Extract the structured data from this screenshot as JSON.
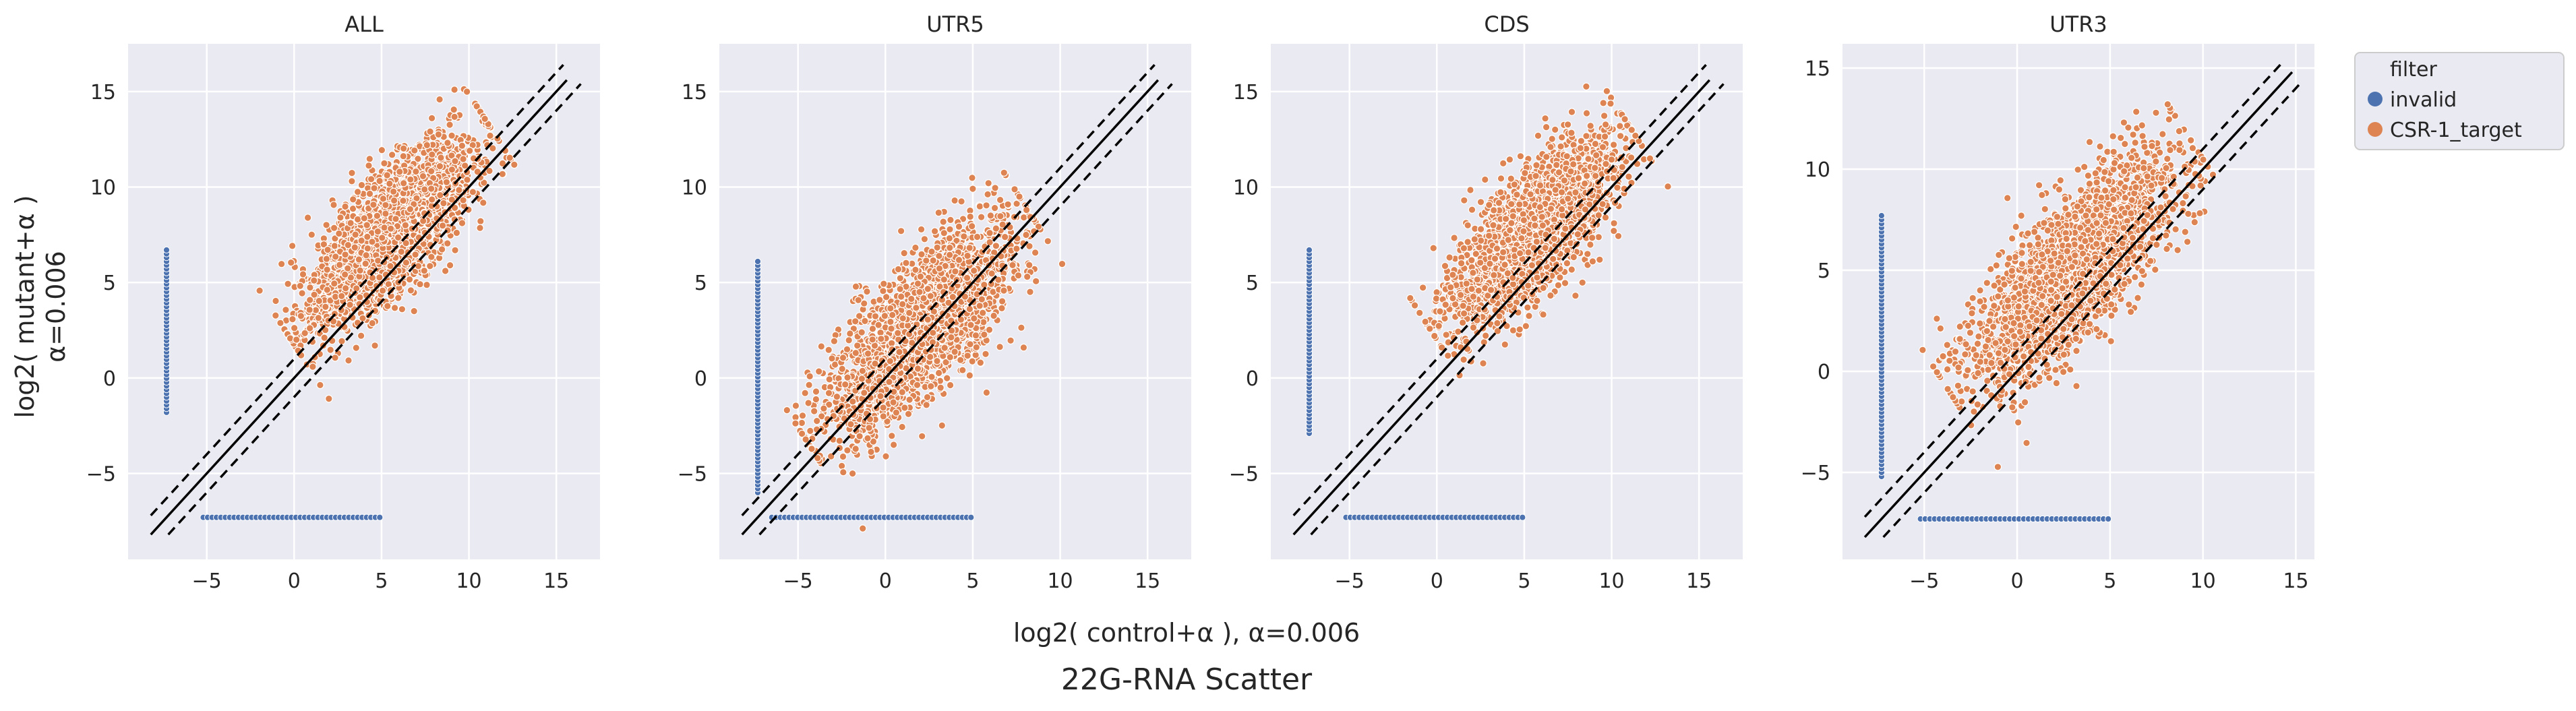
{
  "figure": {
    "suptitle": "22G-RNA Scatter",
    "shared_xlabel": "log2( control+α ), α=0.006",
    "shared_ylabel_line1": "log2( mutant+α )",
    "shared_ylabel_line2": "α=0.006"
  },
  "legend": {
    "title": "filter",
    "items": [
      {
        "label": "invalid",
        "color": "#4c72b0"
      },
      {
        "label": "CSR-1_target",
        "color": "#dd8452"
      }
    ]
  },
  "colors": {
    "invalid": "#4c72b0",
    "target": "#dd8452",
    "panel_bg": "#eaeaf2",
    "grid": "#ffffff",
    "reference_lines": "#000000"
  },
  "chart_data": [
    {
      "type": "scatter",
      "title": "ALL",
      "xlim": [
        -9.5,
        17.5
      ],
      "ylim": [
        -9.5,
        17.5
      ],
      "xticks": [
        -5,
        0,
        5,
        10,
        15
      ],
      "yticks": [
        -5,
        0,
        5,
        10,
        15
      ],
      "grid": true,
      "reference_lines": [
        {
          "style": "solid",
          "intercept": 0,
          "x_range": [
            -8.2,
            15.6
          ]
        },
        {
          "style": "dashed",
          "intercept": 1,
          "x_range": [
            -8.2,
            15.4
          ]
        },
        {
          "style": "dashed",
          "intercept": -1,
          "x_range": [
            -7.2,
            16.4
          ]
        }
      ],
      "series": [
        {
          "name": "invalid",
          "x_fixed": -7.3,
          "y_fixed": -7.3,
          "vertical_range": [
            -1.8,
            6.7
          ],
          "horizontal_range": [
            -5.2,
            4.9
          ]
        },
        {
          "name": "CSR-1_target",
          "cloud_center": [
            5.5,
            7.6
          ],
          "cloud_extent": [
            -1.8,
            15.0
          ],
          "spread_perp": 1.4,
          "diagonal_offset": 2.0
        }
      ]
    },
    {
      "type": "scatter",
      "title": "UTR5",
      "xlim": [
        -9.5,
        17.5
      ],
      "ylim": [
        -9.5,
        17.5
      ],
      "xticks": [
        -5,
        0,
        5,
        10,
        15
      ],
      "yticks": [
        -5,
        0,
        5,
        10,
        15
      ],
      "grid": true,
      "reference_lines": [
        {
          "style": "solid",
          "intercept": 0,
          "x_range": [
            -8.2,
            15.6
          ]
        },
        {
          "style": "dashed",
          "intercept": 1,
          "x_range": [
            -8.2,
            15.4
          ]
        },
        {
          "style": "dashed",
          "intercept": -1,
          "x_range": [
            -7.2,
            16.4
          ]
        }
      ],
      "series": [
        {
          "name": "invalid",
          "x_fixed": -7.3,
          "y_fixed": -7.3,
          "vertical_range": [
            -6.0,
            6.1
          ],
          "horizontal_range": [
            -6.5,
            4.9
          ]
        },
        {
          "name": "CSR-1_target",
          "cloud_center": [
            2.0,
            2.5
          ],
          "cloud_extent": [
            -5.0,
            13.5
          ],
          "spread_perp": 1.6,
          "diagonal_offset": 0.6
        }
      ]
    },
    {
      "type": "scatter",
      "title": "CDS",
      "xlim": [
        -9.5,
        17.5
      ],
      "ylim": [
        -9.5,
        17.5
      ],
      "xticks": [
        -5,
        0,
        5,
        10,
        15
      ],
      "yticks": [
        -5,
        0,
        5,
        10,
        15
      ],
      "grid": true,
      "reference_lines": [
        {
          "style": "solid",
          "intercept": 0,
          "x_range": [
            -8.2,
            15.6
          ]
        },
        {
          "style": "dashed",
          "intercept": 1,
          "x_range": [
            -8.2,
            15.4
          ]
        },
        {
          "style": "dashed",
          "intercept": -1,
          "x_range": [
            -7.2,
            16.4
          ]
        }
      ],
      "series": [
        {
          "name": "invalid",
          "x_fixed": -7.3,
          "y_fixed": -7.3,
          "vertical_range": [
            -2.9,
            6.7
          ],
          "horizontal_range": [
            -5.2,
            4.9
          ]
        },
        {
          "name": "CSR-1_target",
          "cloud_center": [
            5.5,
            7.6
          ],
          "cloud_extent": [
            -1.5,
            15.0
          ],
          "spread_perp": 1.4,
          "diagonal_offset": 2.0
        }
      ]
    },
    {
      "type": "scatter",
      "title": "UTR3",
      "xlim": [
        -9.4,
        16.0
      ],
      "ylim": [
        -9.3,
        16.2
      ],
      "xticks": [
        -5,
        0,
        5,
        10,
        15
      ],
      "yticks": [
        -5,
        0,
        5,
        10,
        15
      ],
      "grid": true,
      "reference_lines": [
        {
          "style": "solid",
          "intercept": 0,
          "x_range": [
            -8.2,
            14.8
          ]
        },
        {
          "style": "dashed",
          "intercept": 1,
          "x_range": [
            -8.2,
            14.3
          ]
        },
        {
          "style": "dashed",
          "intercept": -1,
          "x_range": [
            -7.2,
            15.3
          ]
        }
      ],
      "series": [
        {
          "name": "invalid",
          "x_fixed": -7.3,
          "y_fixed": -7.3,
          "vertical_range": [
            -5.2,
            7.7
          ],
          "horizontal_range": [
            -5.2,
            4.9
          ]
        },
        {
          "name": "CSR-1_target",
          "cloud_center": [
            3.0,
            5.0
          ],
          "cloud_extent": [
            -5.0,
            14.0
          ],
          "spread_perp": 1.6,
          "diagonal_offset": 1.7
        }
      ]
    }
  ]
}
